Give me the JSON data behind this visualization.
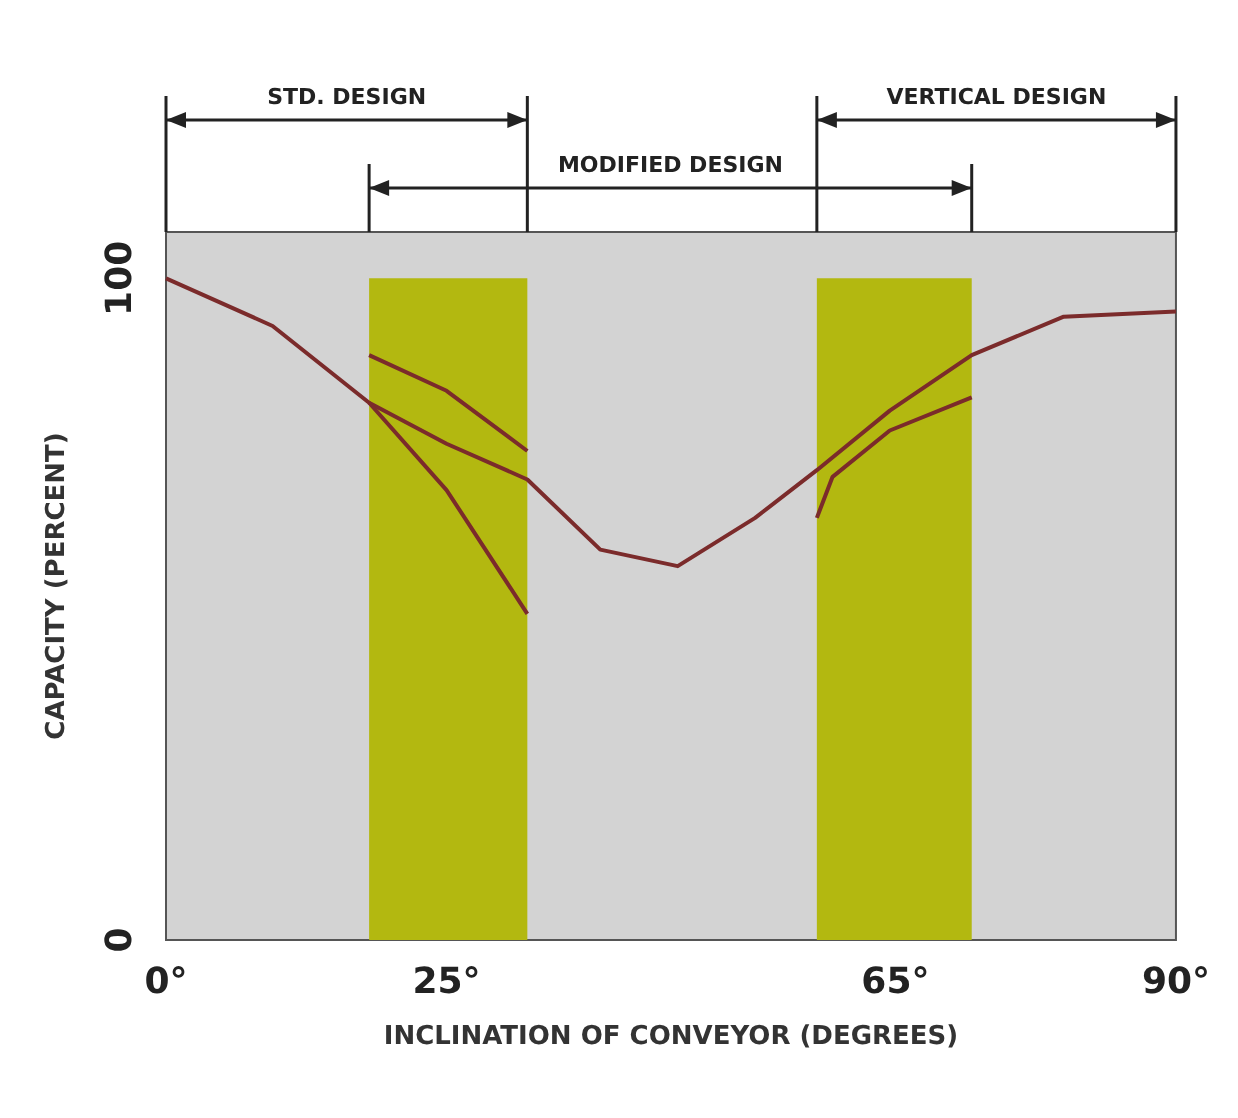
{
  "chart_data": {
    "type": "line",
    "xlabel": "INCLINATION OF CONVEYOR (DEGREES)",
    "ylabel": "CAPACITY (PERCENT)",
    "xlim": [
      0,
      90
    ],
    "xticks": [
      {
        "value": 0,
        "label": "0°"
      },
      {
        "value": 25,
        "label": "25°"
      },
      {
        "value": 65,
        "label": "65°"
      },
      {
        "value": 90,
        "label": "90°"
      }
    ],
    "ylim": [
      0,
      107
    ],
    "yticks": [
      0,
      100
    ],
    "grid": false,
    "marker": "none",
    "line_style": "solid",
    "series": [
      {
        "color": "#7b2b2b",
        "x": [
          0,
          9.5,
          18.1,
          25,
          32.2,
          38.7,
          45.6,
          52.5,
          58,
          64.5,
          71.8,
          80,
          90
        ],
        "values": [
          100,
          92.8,
          81.2,
          75,
          69.6,
          59,
          56.5,
          63.8,
          71,
          80,
          88.4,
          94.2,
          95
        ]
      },
      {
        "color": "#7b2b2b",
        "x": [
          18.1,
          25,
          32.2
        ],
        "values": [
          81.2,
          68,
          49.3
        ]
      },
      {
        "color": "#7b2b2b",
        "x": [
          18.1,
          25,
          32.2
        ],
        "values": [
          88.4,
          83,
          73.9
        ]
      },
      {
        "color": "#7b2b2b",
        "x": [
          58,
          59.4,
          64.5,
          71.8
        ],
        "values": [
          63.8,
          70,
          77,
          82
        ]
      }
    ],
    "bands": [
      {
        "axis": "x",
        "from": 18.1,
        "to": 32.2,
        "color": "#b3b810"
      },
      {
        "axis": "x",
        "from": 58,
        "to": 71.8,
        "color": "#b3b810"
      }
    ],
    "annotations": [
      "STD. DESIGN",
      "MODIFIED DESIGN",
      "VERTICAL DESIGN"
    ]
  }
}
